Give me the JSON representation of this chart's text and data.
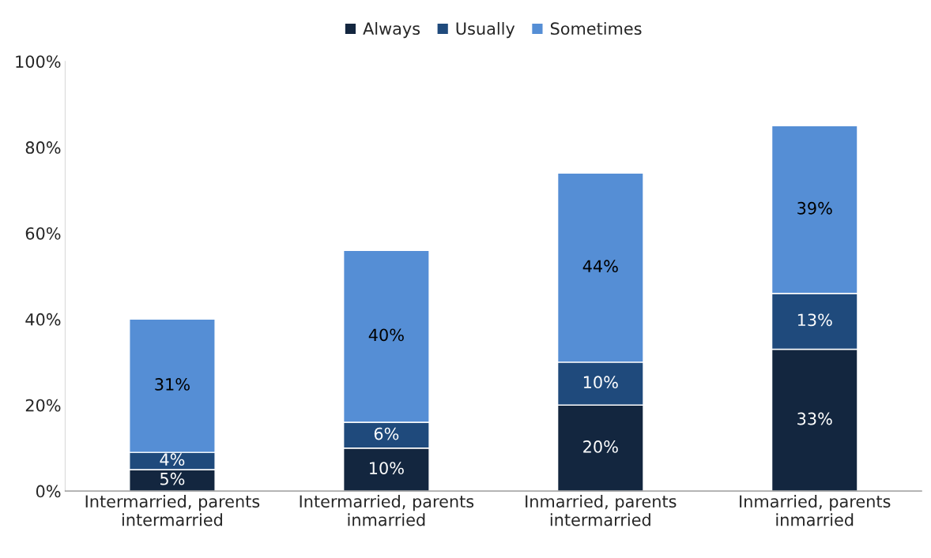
{
  "chart_data": {
    "type": "bar",
    "stacked": true,
    "categories": [
      "Intermarried, parents\nintermarried",
      "Intermarried, parents\ninmarried",
      "Inmarried, parents\nintermarried",
      "Inmarried, parents\ninmarried"
    ],
    "series": [
      {
        "name": "Always",
        "color": "#13263f",
        "values": [
          5,
          10,
          20,
          33
        ],
        "value_labels": [
          "5%",
          "10%",
          "20%",
          "33%"
        ]
      },
      {
        "name": "Usually",
        "color": "#1f4a7c",
        "values": [
          4,
          6,
          10,
          13
        ],
        "value_labels": [
          "4%",
          "6%",
          "10%",
          "13%"
        ]
      },
      {
        "name": "Sometimes",
        "color": "#558ed5",
        "values": [
          31,
          40,
          44,
          39
        ],
        "value_labels": [
          "31%",
          "40%",
          "44%",
          "39%"
        ]
      }
    ],
    "ylim": [
      0,
      100
    ],
    "yticks": [
      {
        "value": 0,
        "label": "0%"
      },
      {
        "value": 20,
        "label": "20%"
      },
      {
        "value": 40,
        "label": "40%"
      },
      {
        "value": 60,
        "label": "60%"
      },
      {
        "value": 80,
        "label": "80%"
      },
      {
        "value": 100,
        "label": "100%"
      }
    ],
    "grid": false,
    "legend": "top"
  }
}
